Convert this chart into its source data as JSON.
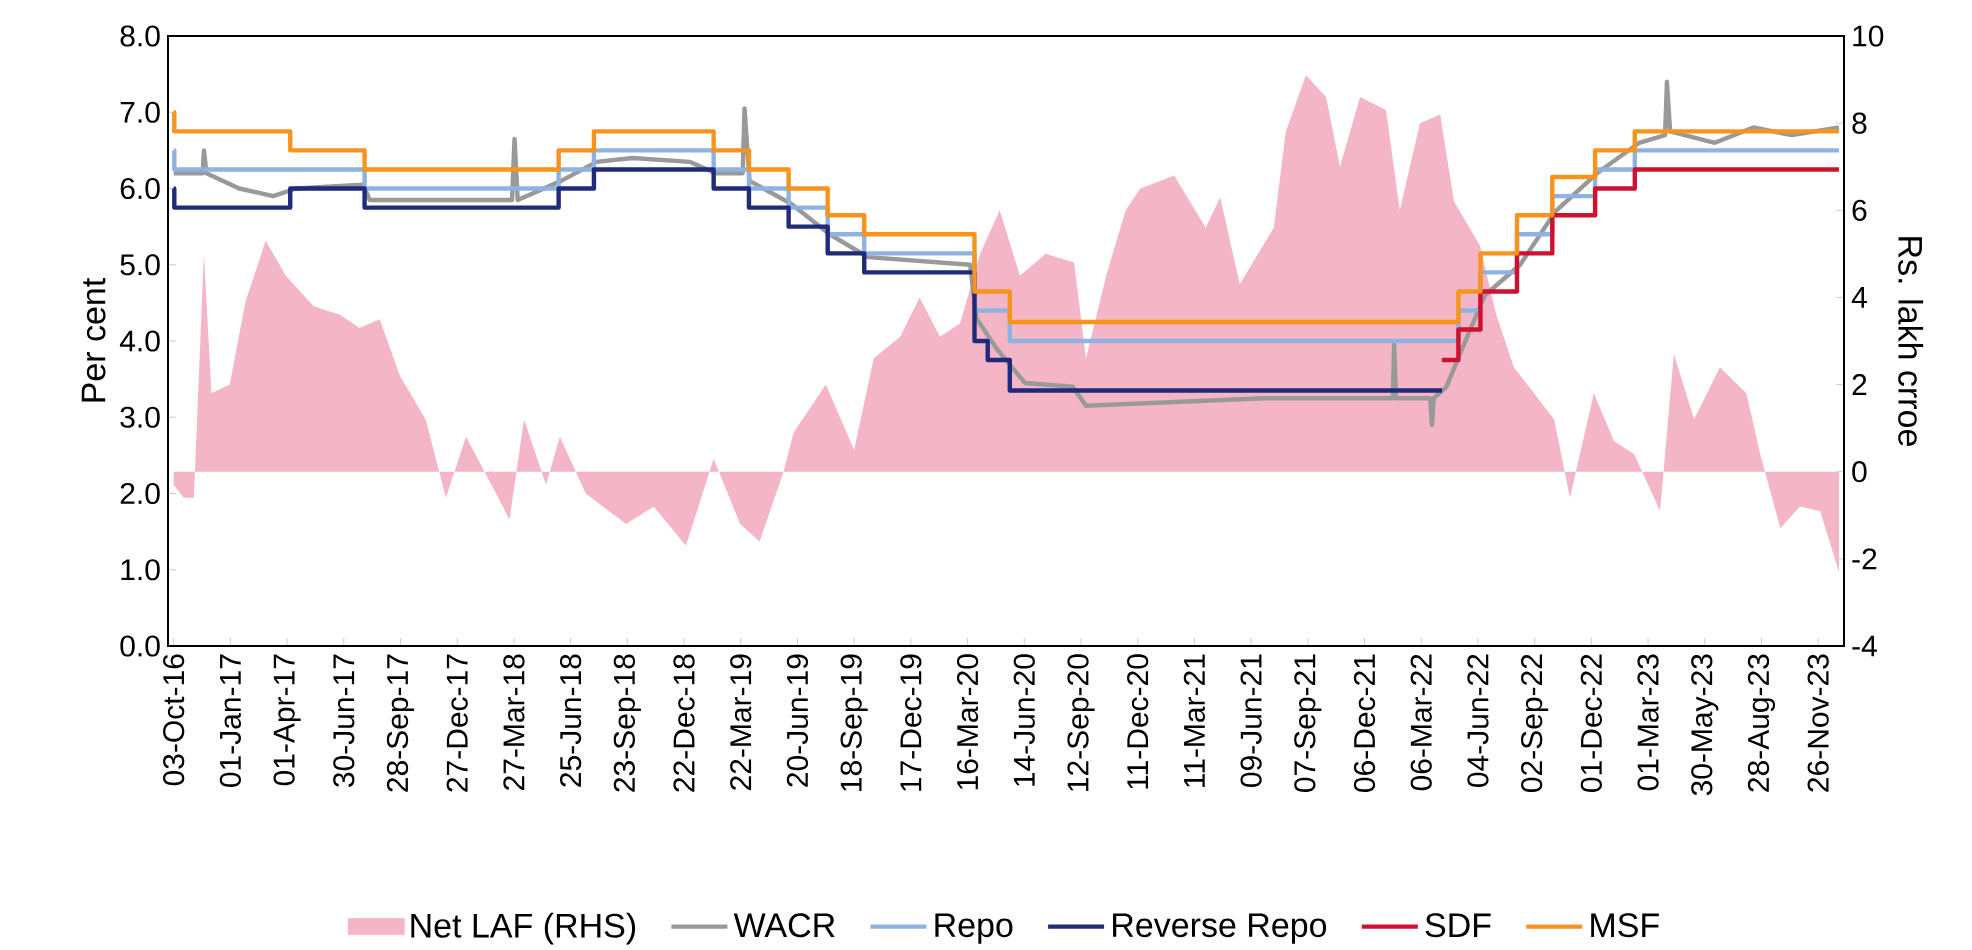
{
  "chart_data": {
    "type": "line",
    "ylabel": "Per cent",
    "y2label": "Rs. lakh crroe",
    "legend": "bottom",
    "xlim": [
      "2016-09-24",
      "2024-01-06"
    ],
    "xticks": [
      {
        "value": "2016-10-03",
        "label": "03-Oct-16"
      },
      {
        "value": "2017-01-01",
        "label": "01-Jan-17"
      },
      {
        "value": "2017-04-01",
        "label": "01-Apr-17"
      },
      {
        "value": "2017-06-30",
        "label": "30-Jun-17"
      },
      {
        "value": "2017-09-28",
        "label": "28-Sep-17"
      },
      {
        "value": "2017-12-27",
        "label": "27-Dec-17"
      },
      {
        "value": "2018-03-27",
        "label": "27-Mar-18"
      },
      {
        "value": "2018-06-25",
        "label": "25-Jun-18"
      },
      {
        "value": "2018-09-23",
        "label": "23-Sep-18"
      },
      {
        "value": "2018-12-22",
        "label": "22-Dec-18"
      },
      {
        "value": "2019-03-22",
        "label": "22-Mar-19"
      },
      {
        "value": "2019-06-20",
        "label": "20-Jun-19"
      },
      {
        "value": "2019-09-18",
        "label": "18-Sep-19"
      },
      {
        "value": "2019-12-17",
        "label": "17-Dec-19"
      },
      {
        "value": "2020-03-16",
        "label": "16-Mar-20"
      },
      {
        "value": "2020-06-14",
        "label": "14-Jun-20"
      },
      {
        "value": "2020-09-12",
        "label": "12-Sep-20"
      },
      {
        "value": "2020-12-11",
        "label": "11-Dec-20"
      },
      {
        "value": "2021-03-11",
        "label": "11-Mar-21"
      },
      {
        "value": "2021-06-09",
        "label": "09-Jun-21"
      },
      {
        "value": "2021-09-07",
        "label": "07-Sep-21"
      },
      {
        "value": "2021-12-06",
        "label": "06-Dec-21"
      },
      {
        "value": "2022-03-06",
        "label": "06-Mar-22"
      },
      {
        "value": "2022-06-04",
        "label": "04-Jun-22"
      },
      {
        "value": "2022-09-02",
        "label": "02-Sep-22"
      },
      {
        "value": "2022-12-01",
        "label": "01-Dec-22"
      },
      {
        "value": "2023-03-01",
        "label": "01-Mar-23"
      },
      {
        "value": "2023-05-30",
        "label": "30-May-23"
      },
      {
        "value": "2023-08-28",
        "label": "28-Aug-23"
      },
      {
        "value": "2023-11-26",
        "label": "26-Nov-23"
      }
    ],
    "ylim": [
      0,
      8
    ],
    "yticks": [
      {
        "value": 0,
        "label": "0.0"
      },
      {
        "value": 1,
        "label": "1.0"
      },
      {
        "value": 2,
        "label": "2.0"
      },
      {
        "value": 3,
        "label": "3.0"
      },
      {
        "value": 4,
        "label": "4.0"
      },
      {
        "value": 5,
        "label": "5.0"
      },
      {
        "value": 6,
        "label": "6.0"
      },
      {
        "value": 7,
        "label": "7.0"
      },
      {
        "value": 8,
        "label": "8.0"
      }
    ],
    "y2lim": [
      -4,
      10
    ],
    "y2ticks": [
      -4,
      -2,
      0,
      2,
      4,
      6,
      8,
      10
    ],
    "series": [
      {
        "name": "Net LAF (RHS)",
        "type": "area",
        "axis": "y2",
        "color": "#f4b6c6",
        "x": [
          "2016-10-03",
          "2016-10-19",
          "2016-11-04",
          "2016-11-20",
          "2016-12-02",
          "2016-12-31",
          "2017-01-25",
          "2017-02-26",
          "2017-03-30",
          "2017-05-13",
          "2017-06-24",
          "2017-07-25",
          "2017-08-26",
          "2017-09-27",
          "2017-11-07",
          "2017-12-09",
          "2018-01-10",
          "2018-02-23",
          "2018-03-20",
          "2018-04-12",
          "2018-05-17",
          "2018-06-08",
          "2018-07-19",
          "2018-09-21",
          "2018-11-04",
          "2018-12-25",
          "2019-02-07",
          "2019-03-21",
          "2019-04-21",
          "2019-05-29",
          "2019-06-14",
          "2019-08-04",
          "2019-09-18",
          "2019-10-19",
          "2019-11-30",
          "2019-12-31",
          "2020-02-01",
          "2020-03-04",
          "2020-03-26",
          "2020-04-05",
          "2020-05-06",
          "2020-06-07",
          "2020-07-18",
          "2020-09-01",
          "2020-09-20",
          "2020-10-22",
          "2020-11-22",
          "2020-12-15",
          "2021-02-07",
          "2021-03-29",
          "2021-04-21",
          "2021-05-22",
          "2021-07-15",
          "2021-08-03",
          "2021-09-04",
          "2021-10-06",
          "2021-10-28",
          "2021-11-29",
          "2022-01-09",
          "2022-01-31",
          "2022-03-04",
          "2022-04-05",
          "2022-04-27",
          "2022-06-07",
          "2022-07-03",
          "2022-07-31",
          "2022-09-01",
          "2022-10-03",
          "2022-10-28",
          "2022-12-05",
          "2023-01-06",
          "2023-02-07",
          "2023-03-20",
          "2023-04-11",
          "2023-05-13",
          "2023-06-23",
          "2023-08-04",
          "2023-08-26",
          "2023-09-27",
          "2023-10-28",
          "2023-11-29",
          "2023-12-29"
        ],
        "values": [
          -0.3,
          -0.6,
          -0.6,
          5.0,
          1.8,
          2.0,
          3.9,
          5.3,
          4.5,
          3.8,
          3.6,
          3.3,
          3.5,
          2.2,
          1.2,
          -0.6,
          0.8,
          -0.4,
          -1.1,
          1.2,
          -0.3,
          0.8,
          -0.5,
          -1.2,
          -0.8,
          -1.7,
          0.3,
          -1.2,
          -1.6,
          0,
          0.9,
          2.0,
          0.5,
          2.6,
          3.1,
          4.0,
          3.1,
          3.4,
          4.5,
          5.0,
          6.0,
          4.5,
          5.0,
          4.8,
          2.6,
          4.5,
          6.0,
          6.5,
          6.8,
          5.6,
          6.3,
          4.3,
          5.6,
          7.8,
          9.1,
          8.6,
          7.0,
          8.6,
          8.3,
          6.0,
          8.0,
          8.2,
          6.2,
          5.2,
          3.6,
          2.4,
          1.8,
          1.2,
          -0.6,
          1.8,
          0.7,
          0.4,
          -0.9,
          2.7,
          1.2,
          2.4,
          1.8,
          0.4,
          -1.3,
          -0.8,
          -0.9,
          -2.3
        ]
      },
      {
        "name": "WACR",
        "color": "#999999",
        "x": [
          "2016-10-03",
          "2016-11-18",
          "2016-11-20",
          "2016-11-24",
          "2017-01-15",
          "2017-03-10",
          "2017-04-15",
          "2017-07-31",
          "2017-08-10",
          "2018-03-24",
          "2018-03-28",
          "2018-04-02",
          "2018-06-10",
          "2018-08-05",
          "2018-10-01",
          "2018-12-31",
          "2019-02-10",
          "2019-03-25",
          "2019-03-28",
          "2019-04-05",
          "2019-06-10",
          "2019-08-10",
          "2019-10-10",
          "2020-03-20",
          "2020-03-30",
          "2020-05-01",
          "2020-06-15",
          "2020-08-30",
          "2020-09-20",
          "2021-06-30",
          "2021-12-31",
          "2022-01-20",
          "2022-01-22",
          "2022-01-25",
          "2022-03-20",
          "2022-03-23",
          "2022-03-26",
          "2022-04-15",
          "2022-05-10",
          "2022-06-15",
          "2022-08-10",
          "2022-10-05",
          "2022-12-10",
          "2023-02-15",
          "2023-03-28",
          "2023-03-31",
          "2023-04-05",
          "2023-06-15",
          "2023-08-15",
          "2023-10-15",
          "2023-12-29"
        ],
        "values": [
          6.2,
          6.2,
          6.5,
          6.2,
          6.0,
          5.9,
          6.0,
          6.05,
          5.85,
          5.85,
          6.65,
          5.85,
          6.1,
          6.35,
          6.4,
          6.35,
          6.2,
          6.2,
          7.05,
          6.1,
          5.8,
          5.4,
          5.1,
          5.0,
          4.3,
          3.9,
          3.45,
          3.4,
          3.15,
          3.25,
          3.25,
          3.25,
          3.95,
          3.25,
          3.25,
          2.9,
          3.25,
          3.4,
          3.9,
          4.6,
          5.0,
          5.7,
          6.2,
          6.6,
          6.7,
          7.4,
          6.75,
          6.6,
          6.8,
          6.7,
          6.8
        ]
      },
      {
        "name": "Repo",
        "type": "step",
        "color": "#8db3e2",
        "x": [
          "2016-10-03",
          "2016-10-04",
          "2017-08-02",
          "2018-06-06",
          "2018-08-01",
          "2019-02-07",
          "2019-04-04",
          "2019-06-06",
          "2019-08-07",
          "2019-10-04",
          "2020-03-27",
          "2020-05-22",
          "2022-05-04",
          "2022-06-08",
          "2022-08-05",
          "2022-09-30",
          "2022-12-07",
          "2023-02-08",
          "2023-12-29"
        ],
        "values": [
          6.5,
          6.25,
          6.0,
          6.25,
          6.5,
          6.25,
          6.0,
          5.75,
          5.4,
          5.15,
          4.4,
          4.0,
          4.4,
          4.9,
          5.4,
          5.9,
          6.25,
          6.5,
          6.5
        ]
      },
      {
        "name": "Reverse Repo",
        "type": "step",
        "color": "#1f2a7a",
        "x": [
          "2016-10-03",
          "2016-10-04",
          "2017-04-06",
          "2017-08-02",
          "2018-06-06",
          "2018-08-01",
          "2019-02-07",
          "2019-04-04",
          "2019-06-06",
          "2019-08-07",
          "2019-10-04",
          "2020-03-27",
          "2020-04-17",
          "2020-05-22",
          "2022-04-08"
        ],
        "values": [
          6.0,
          5.75,
          6.0,
          5.75,
          6.0,
          6.25,
          6.0,
          5.75,
          5.5,
          5.15,
          4.9,
          4.0,
          3.75,
          3.35,
          3.35
        ]
      },
      {
        "name": "SDF",
        "type": "step",
        "color": "#d0102e",
        "x": [
          "2022-04-08",
          "2022-05-04",
          "2022-06-08",
          "2022-08-05",
          "2022-09-30",
          "2022-12-07",
          "2023-02-08",
          "2023-12-29"
        ],
        "values": [
          3.75,
          4.15,
          4.65,
          5.15,
          5.65,
          6.0,
          6.25,
          6.25
        ]
      },
      {
        "name": "MSF",
        "type": "step",
        "color": "#f7941d",
        "x": [
          "2016-10-03",
          "2016-10-04",
          "2017-04-06",
          "2017-08-02",
          "2018-06-06",
          "2018-08-01",
          "2019-02-07",
          "2019-04-04",
          "2019-06-06",
          "2019-08-07",
          "2019-10-04",
          "2020-03-27",
          "2020-05-22",
          "2022-05-04",
          "2022-06-08",
          "2022-08-05",
          "2022-09-30",
          "2022-12-07",
          "2023-02-08",
          "2023-12-29"
        ],
        "values": [
          7.0,
          6.75,
          6.5,
          6.25,
          6.5,
          6.75,
          6.5,
          6.25,
          6.0,
          5.65,
          5.4,
          4.65,
          4.25,
          4.65,
          5.15,
          5.65,
          6.15,
          6.5,
          6.75,
          6.75
        ]
      }
    ]
  }
}
